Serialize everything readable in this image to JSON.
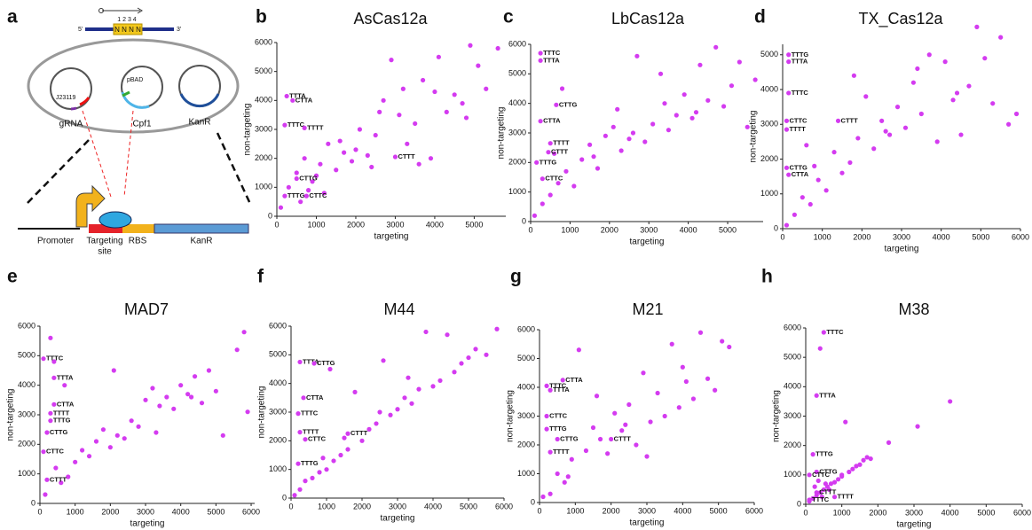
{
  "diagram": {
    "letter": "a",
    "five": "5'",
    "three": "3'",
    "positions": "1 2 3 4",
    "nnnn": "N N N N",
    "promoter1": "J23119",
    "promoter2": "pBAD",
    "plasmid1": "gRNA",
    "plasmid2": "Cpf1",
    "plasmid3": "KanR",
    "part1": "Promoter",
    "part2": "Targeting",
    "part2b": "site",
    "part3": "RBS",
    "part4": "KanR"
  },
  "chart_data": [
    {
      "type": "scatter",
      "letter": "b",
      "title": "AsCas12a",
      "x_label": "targeting",
      "y_label": "non-targeting",
      "color": "#d43bf0",
      "xlim": [
        0,
        5800
      ],
      "ylim": [
        0,
        6000
      ],
      "xticks": [
        0,
        1000,
        2000,
        3000,
        4000,
        5000
      ],
      "yticks": [
        0,
        1000,
        2000,
        3000,
        4000,
        5000,
        6000
      ],
      "x": [
        100,
        300,
        500,
        700,
        900,
        1100,
        1300,
        1500,
        1700,
        1900,
        2100,
        2300,
        2500,
        2700,
        2900,
        3100,
        3300,
        3500,
        3700,
        3900,
        4100,
        4300,
        4500,
        4700,
        4900,
        5100,
        5300,
        5600,
        1000,
        1600,
        2000,
        2400,
        800,
        1200,
        2600,
        3200,
        3600,
        4000,
        4800,
        600
      ],
      "values": [
        300,
        1000,
        1500,
        2000,
        1200,
        1800,
        2500,
        1600,
        2200,
        1900,
        3000,
        2100,
        2800,
        4000,
        5400,
        3500,
        2500,
        3200,
        4700,
        2000,
        5500,
        3600,
        4200,
        3900,
        5900,
        5200,
        4400,
        5800,
        1400,
        2600,
        2300,
        1700,
        900,
        800,
        3600,
        4400,
        1800,
        4300,
        3400,
        500
      ],
      "annotations": [
        {
          "text": "TTTA",
          "x": 250,
          "y": 4150
        },
        {
          "text": "CTTA",
          "x": 400,
          "y": 4000
        },
        {
          "text": "TTTC",
          "x": 200,
          "y": 3150
        },
        {
          "text": "TTTT",
          "x": 700,
          "y": 3050
        },
        {
          "text": "CTTT",
          "x": 3000,
          "y": 2050
        },
        {
          "text": "CTTG",
          "x": 500,
          "y": 1300
        },
        {
          "text": "TTTG",
          "x": 200,
          "y": 700
        },
        {
          "text": "CTTC",
          "x": 750,
          "y": 700
        }
      ]
    },
    {
      "type": "scatter",
      "letter": "c",
      "title": "LbCas12a",
      "x_label": "targeting",
      "y_label": "non-targeting",
      "color": "#d43bf0",
      "xlim": [
        0,
        5900
      ],
      "ylim": [
        0,
        6000
      ],
      "xticks": [
        0,
        1000,
        2000,
        3000,
        4000,
        5000
      ],
      "yticks": [
        0,
        1000,
        2000,
        3000,
        4000,
        5000,
        6000
      ],
      "x": [
        100,
        300,
        500,
        700,
        900,
        1100,
        1300,
        1500,
        1700,
        1900,
        2100,
        2300,
        2500,
        2700,
        2900,
        3100,
        3300,
        3500,
        3700,
        3900,
        4100,
        4300,
        4500,
        4700,
        4900,
        5100,
        5300,
        5500,
        5700,
        800,
        1600,
        2200,
        2600,
        3400,
        4200,
        600
      ],
      "values": [
        200,
        600,
        900,
        1300,
        1700,
        1200,
        2100,
        2600,
        1800,
        2900,
        3200,
        2400,
        2800,
        5600,
        2700,
        3300,
        5000,
        3100,
        3600,
        4300,
        3500,
        5300,
        4100,
        5900,
        3900,
        4600,
        5400,
        3200,
        4800,
        4500,
        2200,
        3800,
        3000,
        4000,
        3700,
        2300
      ],
      "annotations": [
        {
          "text": "TTTC",
          "x": 250,
          "y": 5700
        },
        {
          "text": "TTTA",
          "x": 250,
          "y": 5450
        },
        {
          "text": "CTTG",
          "x": 650,
          "y": 3950
        },
        {
          "text": "CTTA",
          "x": 250,
          "y": 3400
        },
        {
          "text": "TTTT",
          "x": 500,
          "y": 2650
        },
        {
          "text": "CTTT",
          "x": 450,
          "y": 2350
        },
        {
          "text": "TTTG",
          "x": 150,
          "y": 2000
        },
        {
          "text": "CTTC",
          "x": 300,
          "y": 1450
        }
      ]
    },
    {
      "type": "scatter",
      "letter": "d",
      "title": "TX_Cas12a",
      "x_label": "targeting",
      "y_label": "non-targeting",
      "color": "#d43bf0",
      "xlim": [
        0,
        6000
      ],
      "ylim": [
        0,
        5300
      ],
      "xticks": [
        0,
        1000,
        2000,
        3000,
        4000,
        5000,
        6000
      ],
      "yticks": [
        0,
        1000,
        2000,
        3000,
        4000,
        5000
      ],
      "x": [
        100,
        300,
        500,
        700,
        900,
        1100,
        1300,
        1500,
        1700,
        1900,
        2100,
        2300,
        2500,
        2700,
        2900,
        3100,
        3300,
        3500,
        3700,
        3900,
        4100,
        4300,
        4500,
        4700,
        4900,
        5100,
        5300,
        5500,
        5700,
        5900,
        800,
        1800,
        2600,
        3400,
        4400,
        600
      ],
      "values": [
        100,
        400,
        900,
        700,
        1400,
        1100,
        2200,
        1600,
        1900,
        2600,
        3800,
        2300,
        3100,
        2700,
        3500,
        2900,
        4200,
        3300,
        5000,
        2500,
        4800,
        3700,
        2700,
        4100,
        5800,
        4900,
        3600,
        5500,
        3000,
        3300,
        1800,
        4400,
        2800,
        4600,
        3900,
        2400
      ],
      "annotations": [
        {
          "text": "TTTG",
          "x": 150,
          "y": 5000
        },
        {
          "text": "TTTA",
          "x": 150,
          "y": 4800
        },
        {
          "text": "TTTC",
          "x": 150,
          "y": 3900
        },
        {
          "text": "CTTC",
          "x": 100,
          "y": 3100
        },
        {
          "text": "TTTT",
          "x": 100,
          "y": 2850
        },
        {
          "text": "CTTT",
          "x": 1400,
          "y": 3100
        },
        {
          "text": "CTTG",
          "x": 100,
          "y": 1750
        },
        {
          "text": "CTTA",
          "x": 150,
          "y": 1550
        }
      ]
    },
    {
      "type": "scatter",
      "letter": "e",
      "title": "MAD7",
      "x_label": "targeting",
      "y_label": "non-targeting",
      "color": "#d43bf0",
      "xlim": [
        0,
        6100
      ],
      "ylim": [
        0,
        6000
      ],
      "xticks": [
        0,
        1000,
        2000,
        3000,
        4000,
        5000,
        6000
      ],
      "yticks": [
        0,
        1000,
        2000,
        3000,
        4000,
        5000,
        6000
      ],
      "x": [
        150,
        300,
        450,
        600,
        800,
        1000,
        1200,
        1400,
        1600,
        1800,
        2000,
        2200,
        2400,
        2600,
        2800,
        3000,
        3200,
        3400,
        3600,
        3800,
        4000,
        4200,
        4400,
        4600,
        4800,
        5000,
        5200,
        5600,
        5800,
        5900,
        400,
        700,
        2100,
        3300,
        4300
      ],
      "values": [
        300,
        5600,
        1200,
        700,
        900,
        1400,
        1800,
        1600,
        2100,
        2500,
        1900,
        2300,
        2200,
        2800,
        2600,
        3500,
        3900,
        3300,
        3600,
        3200,
        4000,
        3700,
        4300,
        3400,
        4500,
        3800,
        2300,
        5200,
        5800,
        3100,
        4800,
        4000,
        4500,
        2400,
        3600
      ],
      "annotations": [
        {
          "text": "TTTC",
          "x": 100,
          "y": 4900
        },
        {
          "text": "TTTA",
          "x": 400,
          "y": 4250
        },
        {
          "text": "CTTA",
          "x": 400,
          "y": 3350
        },
        {
          "text": "TTTT",
          "x": 300,
          "y": 3050
        },
        {
          "text": "TTTG",
          "x": 300,
          "y": 2800
        },
        {
          "text": "CTTG",
          "x": 200,
          "y": 2400
        },
        {
          "text": "CTTC",
          "x": 100,
          "y": 1750
        },
        {
          "text": "CTTT",
          "x": 200,
          "y": 800
        }
      ]
    },
    {
      "type": "scatter",
      "letter": "f",
      "title": "M44",
      "x_label": "targeting",
      "y_label": "non-targeting",
      "color": "#d43bf0",
      "xlim": [
        0,
        6000
      ],
      "ylim": [
        0,
        6000
      ],
      "xticks": [
        0,
        1000,
        2000,
        3000,
        4000,
        5000,
        6000
      ],
      "yticks": [
        0,
        1000,
        2000,
        3000,
        4000,
        5000,
        6000
      ],
      "x": [
        100,
        250,
        400,
        600,
        800,
        1000,
        1200,
        1400,
        1600,
        1800,
        2000,
        2200,
        2400,
        2600,
        2800,
        3000,
        3200,
        3400,
        3600,
        3800,
        4000,
        4200,
        4400,
        4600,
        4800,
        5000,
        5200,
        5500,
        5800,
        900,
        1500,
        2500,
        3300,
        1100
      ],
      "values": [
        100,
        300,
        600,
        700,
        900,
        1000,
        1300,
        1500,
        1700,
        3700,
        2000,
        2400,
        2600,
        4800,
        2900,
        3100,
        3500,
        3300,
        3800,
        5800,
        3900,
        4100,
        5700,
        4400,
        4700,
        4900,
        5200,
        5000,
        5900,
        1400,
        2100,
        3000,
        4200,
        4500
      ],
      "annotations": [
        {
          "text": "TTTA",
          "x": 250,
          "y": 4750
        },
        {
          "text": "CTTG",
          "x": 650,
          "y": 4700
        },
        {
          "text": "CTTA",
          "x": 350,
          "y": 3500
        },
        {
          "text": "TTTC",
          "x": 200,
          "y": 2950
        },
        {
          "text": "TTTT",
          "x": 250,
          "y": 2300
        },
        {
          "text": "CTTC",
          "x": 400,
          "y": 2050
        },
        {
          "text": "TTTG",
          "x": 200,
          "y": 1200
        },
        {
          "text": "CTTT",
          "x": 1600,
          "y": 2250
        }
      ]
    },
    {
      "type": "scatter",
      "letter": "g",
      "title": "M21",
      "x_label": "targeting",
      "y_label": "non-targeting",
      "color": "#d43bf0",
      "xlim": [
        0,
        6000
      ],
      "ylim": [
        0,
        6000
      ],
      "xticks": [
        0,
        1000,
        2000,
        3000,
        4000,
        5000,
        6000
      ],
      "yticks": [
        0,
        1000,
        2000,
        3000,
        4000,
        5000,
        6000
      ],
      "x": [
        100,
        300,
        500,
        700,
        900,
        1100,
        1300,
        1500,
        1700,
        1900,
        2100,
        2300,
        2500,
        2700,
        2900,
        3100,
        3300,
        3500,
        3700,
        3900,
        4100,
        4300,
        4500,
        4700,
        4900,
        5100,
        5300,
        800,
        1600,
        2400,
        3000,
        4000
      ],
      "values": [
        200,
        300,
        1000,
        700,
        1500,
        5300,
        1800,
        2600,
        2200,
        1700,
        3100,
        2500,
        3400,
        2000,
        4500,
        2800,
        3800,
        3000,
        5500,
        3300,
        4200,
        3600,
        5900,
        4300,
        3900,
        5600,
        5400,
        900,
        3700,
        2700,
        1600,
        4700
      ],
      "annotations": [
        {
          "text": "TTTC",
          "x": 200,
          "y": 4050
        },
        {
          "text": "TTTA",
          "x": 300,
          "y": 3900
        },
        {
          "text": "CTTA",
          "x": 650,
          "y": 4250
        },
        {
          "text": "CTTC",
          "x": 200,
          "y": 3000
        },
        {
          "text": "TTTG",
          "x": 200,
          "y": 2550
        },
        {
          "text": "CTTG",
          "x": 500,
          "y": 2200
        },
        {
          "text": "TTTT",
          "x": 300,
          "y": 1750
        },
        {
          "text": "CTTT",
          "x": 2000,
          "y": 2200
        }
      ]
    },
    {
      "type": "scatter",
      "letter": "h",
      "title": "M38",
      "x_label": "targeting",
      "y_label": "non-targeting",
      "color": "#d43bf0",
      "xlim": [
        0,
        6000
      ],
      "ylim": [
        0,
        6000
      ],
      "xticks": [
        0,
        1000,
        2000,
        3000,
        4000,
        5000,
        6000
      ],
      "yticks": [
        0,
        1000,
        2000,
        3000,
        4000,
        5000,
        6000
      ],
      "x": [
        100,
        200,
        300,
        400,
        500,
        600,
        700,
        800,
        900,
        1000,
        1100,
        1200,
        1300,
        1400,
        1500,
        1600,
        1700,
        1800,
        2300,
        3100,
        4000,
        1000,
        400,
        450,
        250,
        350,
        650,
        550
      ],
      "values": [
        100,
        200,
        300,
        400,
        500,
        600,
        700,
        750,
        850,
        950,
        2800,
        1100,
        1200,
        1300,
        1350,
        1500,
        1600,
        1550,
        2100,
        2650,
        3500,
        1000,
        5300,
        250,
        600,
        800,
        500,
        700
      ],
      "annotations": [
        {
          "text": "TTTC",
          "x": 500,
          "y": 5850
        },
        {
          "text": "TTTA",
          "x": 300,
          "y": 3700
        },
        {
          "text": "TTTG",
          "x": 200,
          "y": 1700
        },
        {
          "text": "CTTG",
          "x": 300,
          "y": 1100
        },
        {
          "text": "CTTC",
          "x": 100,
          "y": 1000
        },
        {
          "text": "CTTT",
          "x": 300,
          "y": 400
        },
        {
          "text": "TTTT",
          "x": 800,
          "y": 250
        },
        {
          "text": "TTTC",
          "x": 100,
          "y": 150
        }
      ]
    }
  ]
}
